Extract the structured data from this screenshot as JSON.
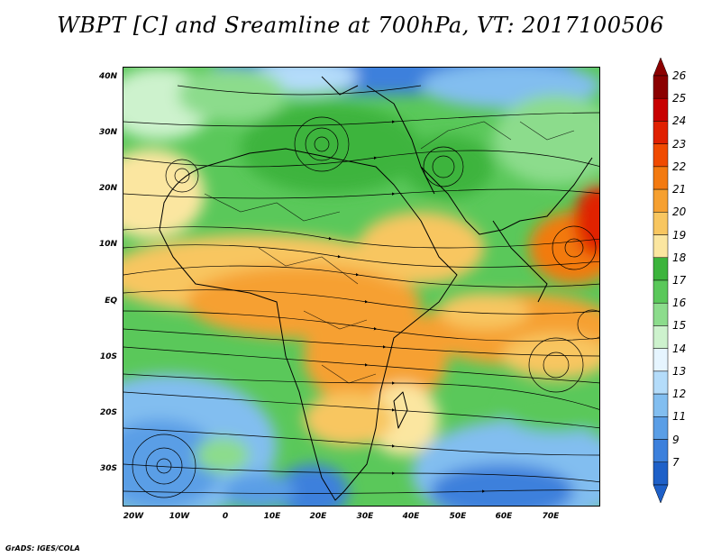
{
  "title": "WBPT [C] and Sreamline at 700hPa, VT: 2017100506",
  "credit": "GrADS: IGES/COLA",
  "map": {
    "lat_labels": [
      "40N",
      "30N",
      "20N",
      "10N",
      "EQ",
      "10S",
      "20S",
      "30S"
    ],
    "lon_labels": [
      "20W",
      "10W",
      "0",
      "10E",
      "20E",
      "30E",
      "40E",
      "50E",
      "60E",
      "70E"
    ]
  },
  "colorbar": {
    "levels": [
      "26",
      "25",
      "24",
      "23",
      "22",
      "21",
      "20",
      "19",
      "18",
      "17",
      "16",
      "15",
      "14",
      "13",
      "12",
      "11",
      "9",
      "7"
    ],
    "colors": [
      "#8b0000",
      "#c80000",
      "#e02000",
      "#f04a00",
      "#f37a10",
      "#f6a030",
      "#f8c660",
      "#fbe6a0",
      "#3cb43c",
      "#5ac85a",
      "#8cdc8c",
      "#cdf2cd",
      "#e6f5ff",
      "#b4dcfa",
      "#82bef0",
      "#5a9ee6",
      "#3c80dc",
      "#1e60c8"
    ]
  },
  "colors": {
    "cold": "#3c80dc",
    "cool": "#b4dcfa",
    "green": "#5ac85a",
    "warm": "#f6a030",
    "hot": "#e02000"
  }
}
